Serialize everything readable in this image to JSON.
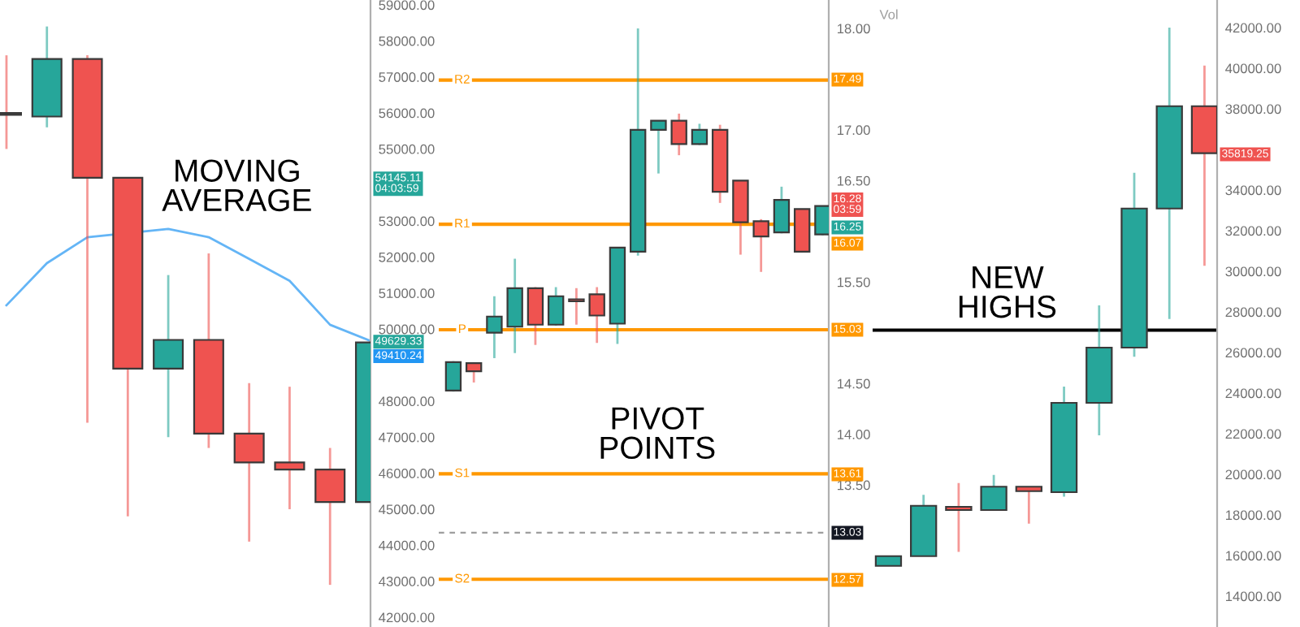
{
  "chart_data": [
    {
      "type": "candlestick",
      "categories": [
        null,
        null,
        null,
        null,
        null,
        null,
        null,
        null,
        null,
        null
      ],
      "ohlc": [
        [
          56000,
          57600,
          55000,
          55950
        ],
        [
          55900,
          58400,
          55600,
          57500
        ],
        [
          57500,
          57600,
          47400,
          54200
        ],
        [
          54200,
          54200,
          44800,
          48900
        ],
        [
          48900,
          51500,
          47000,
          49700
        ],
        [
          49700,
          52100,
          46700,
          47100
        ],
        [
          47100,
          48500,
          44100,
          46300
        ],
        [
          46300,
          48400,
          45000,
          46100
        ],
        [
          46100,
          46700,
          42900,
          45200
        ],
        [
          45200,
          49629.33,
          45200,
          49629.33
        ]
      ],
      "colors": [
        "#ef5350",
        "#26a69a",
        "#ef5350",
        "#ef5350",
        "#26a69a",
        "#ef5350",
        "#ef5350",
        "#ef5350",
        "#ef5350",
        "#26a69a"
      ],
      "series": [
        {
          "type": "line",
          "color": "#64b5f6",
          "values": [
            50660,
            51830,
            52550,
            null,
            52780,
            52550,
            51950,
            51340,
            50120,
            49670
          ]
        }
      ],
      "ylim": [
        41730,
        59135
      ],
      "yticks": [
        {
          "value": 42000,
          "label": "42000.00"
        },
        {
          "value": 43000,
          "label": "43000.00"
        },
        {
          "value": 44000,
          "label": "44000.00"
        },
        {
          "value": 45000,
          "label": "45000.00"
        },
        {
          "value": 46000,
          "label": "46000.00"
        },
        {
          "value": 47000,
          "label": "47000.00"
        },
        {
          "value": 48000,
          "label": "48000.00"
        },
        {
          "value": 50000,
          "label": "50000.00"
        },
        {
          "value": 51000,
          "label": "51000.00"
        },
        {
          "value": 52000,
          "label": "52000.00"
        },
        {
          "value": 53000,
          "label": "53000.00"
        },
        {
          "value": 55000,
          "label": "55000.00"
        },
        {
          "value": 56000,
          "label": "56000.00"
        },
        {
          "value": 57000,
          "label": "57000.00"
        },
        {
          "value": 58000,
          "label": "58000.00"
        },
        {
          "value": 59000,
          "label": "59000.00"
        }
      ],
      "tick_labels": "y",
      "grid": false,
      "annotations": [
        "MOVING AVERAGE",
        "54145.11\n04:03:59",
        "49629.33",
        "49410.24"
      ]
    },
    {
      "type": "candlestick",
      "categories": [
        null,
        null,
        null,
        null,
        null,
        null,
        null,
        null,
        null,
        null,
        null,
        null,
        null,
        null,
        null,
        null,
        null,
        null,
        null
      ],
      "ohlc": [
        [
          14.43,
          14.72,
          14.42,
          14.71
        ],
        [
          14.7,
          14.71,
          14.51,
          14.62
        ],
        [
          15.0,
          15.36,
          14.75,
          15.16
        ],
        [
          15.06,
          15.73,
          14.8,
          15.44
        ],
        [
          15.44,
          15.45,
          14.88,
          15.08
        ],
        [
          15.08,
          15.45,
          15.07,
          15.36
        ],
        [
          15.33,
          15.44,
          15.08,
          15.31
        ],
        [
          15.38,
          15.45,
          14.9,
          15.17
        ],
        [
          15.09,
          15.84,
          14.89,
          15.84
        ],
        [
          15.8,
          18.0,
          15.76,
          17.0
        ],
        [
          17.0,
          17.09,
          16.57,
          17.09
        ],
        [
          17.09,
          17.16,
          16.75,
          16.86
        ],
        [
          16.86,
          17.06,
          16.85,
          17.0
        ],
        [
          17.0,
          17.05,
          16.28,
          16.39
        ],
        [
          16.5,
          16.5,
          15.77,
          16.09
        ],
        [
          16.1,
          16.12,
          15.6,
          15.95
        ],
        [
          15.99,
          16.44,
          15.98,
          16.31
        ],
        [
          16.22,
          16.22,
          15.79,
          15.8
        ],
        [
          15.97,
          16.25,
          15.96,
          16.25
        ]
      ],
      "colors": [
        "#26a69a",
        "#ef5350",
        "#26a69a",
        "#26a69a",
        "#ef5350",
        "#26a69a",
        "#ef5350",
        "#ef5350",
        "#26a69a",
        "#26a69a",
        "#26a69a",
        "#ef5350",
        "#26a69a",
        "#ef5350",
        "#ef5350",
        "#ef5350",
        "#26a69a",
        "#ef5350",
        "#26a69a"
      ],
      "ylim": [
        12.1,
        18.28
      ],
      "yticks": [
        {
          "value": 13.5,
          "label": "13.50"
        },
        {
          "value": 14.0,
          "label": "14.00"
        },
        {
          "value": 14.5,
          "label": "14.50"
        },
        {
          "value": 15.5,
          "label": "15.50"
        },
        {
          "value": 16.5,
          "label": "16.50"
        },
        {
          "value": 17.0,
          "label": "17.00"
        },
        {
          "value": 18.0,
          "label": "18.00"
        }
      ],
      "tick_labels": "y",
      "grid": false,
      "ref_lines": [
        {
          "axis": "y",
          "value": 17.49,
          "label": "R2",
          "color": "#ff9800"
        },
        {
          "axis": "y",
          "value": 16.07,
          "label": "R1",
          "color": "#ff9800"
        },
        {
          "axis": "y",
          "value": 15.03,
          "label": "P",
          "color": "#ff9800"
        },
        {
          "axis": "y",
          "value": 13.61,
          "label": "S1",
          "color": "#ff9800"
        },
        {
          "axis": "y",
          "value": 12.57,
          "label": "S2",
          "color": "#ff9800"
        },
        {
          "axis": "y",
          "value": 13.03,
          "color": "#9e9e9e",
          "line_style": "dashed"
        }
      ],
      "annotations": [
        "PIVOT POINTS",
        "17.49",
        "16.28\n03:59",
        "16.25",
        "16.07",
        "15.03",
        "13.61",
        "13.03",
        "12.57"
      ]
    },
    {
      "type": "candlestick",
      "categories": [
        null,
        null,
        null,
        null,
        null,
        null,
        null,
        null,
        null,
        null
      ],
      "ohlc": [
        [
          15490,
          15970,
          15490,
          15970
        ],
        [
          15970,
          18990,
          15970,
          18450
        ],
        [
          18400,
          19570,
          16180,
          18240
        ],
        [
          18240,
          19970,
          18240,
          19390
        ],
        [
          19390,
          19390,
          17570,
          19170
        ],
        [
          19120,
          24320,
          18900,
          23520
        ],
        [
          23520,
          28320,
          21920,
          26240
        ],
        [
          26240,
          34850,
          25790,
          33090
        ],
        [
          33090,
          42000,
          27650,
          38130
        ],
        [
          38130,
          40130,
          30270,
          35819.25
        ]
      ],
      "colors": [
        "#26a69a",
        "#26a69a",
        "#ef5350",
        "#26a69a",
        "#ef5350",
        "#26a69a",
        "#26a69a",
        "#26a69a",
        "#26a69a",
        "#ef5350"
      ],
      "ylim": [
        12480,
        43360
      ],
      "yticks": [
        {
          "value": 14000,
          "label": "14000.00"
        },
        {
          "value": 16000,
          "label": "16000.00"
        },
        {
          "value": 18000,
          "label": "18000.00"
        },
        {
          "value": 20000,
          "label": "20000.00"
        },
        {
          "value": 22000,
          "label": "22000.00"
        },
        {
          "value": 24000,
          "label": "24000.00"
        },
        {
          "value": 26000,
          "label": "26000.00"
        },
        {
          "value": 28000,
          "label": "28000.00"
        },
        {
          "value": 30000,
          "label": "30000.00"
        },
        {
          "value": 32000,
          "label": "32000.00"
        },
        {
          "value": 34000,
          "label": "34000.00"
        },
        {
          "value": 38000,
          "label": "38000.00"
        },
        {
          "value": 40000,
          "label": "40000.00"
        },
        {
          "value": 42000,
          "label": "42000.00"
        }
      ],
      "tick_labels": "y",
      "grid": false,
      "ref_lines": [
        {
          "axis": "y",
          "value": 27100,
          "color": "#000000"
        }
      ],
      "annotations": [
        "NEW HIGHS",
        "Vol",
        "35819.25"
      ]
    }
  ]
}
